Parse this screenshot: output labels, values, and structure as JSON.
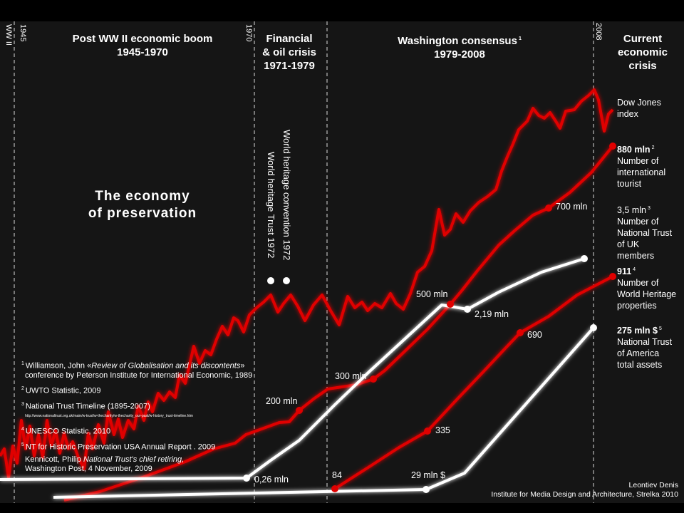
{
  "title": "The economy of preservation",
  "title_lines": [
    "The economy",
    "of preservation"
  ],
  "eras": [
    {
      "lines": [
        "Post WW II economic boom",
        "1945-1970"
      ]
    },
    {
      "lines": [
        "Financial",
        "& oil crisis",
        "1971-1979"
      ]
    },
    {
      "lines": [
        "Washington consensus",
        "1979-2008"
      ],
      "sup": "1"
    },
    {
      "lines": [
        "Current",
        "economic",
        "crisis"
      ]
    }
  ],
  "year_markers": [
    "WW II",
    "1945",
    "1970",
    "2008"
  ],
  "events": [
    "World heritage convention 1972",
    "World heritage Trust 1972"
  ],
  "colors": {
    "red": "#e00000",
    "white": "#ffffff",
    "background": "#151515"
  },
  "chart_data": {
    "type": "line",
    "title": "The economy of preservation",
    "x_range": [
      1940,
      2010
    ],
    "series": [
      {
        "name": "Dow Jones index",
        "color": "#e00000",
        "style": "jagged"
      },
      {
        "name": "Number of international tourist",
        "color": "#e00000",
        "points": [
          {
            "label": "200 mln"
          },
          {
            "label": "300 mln"
          },
          {
            "label": "500 mln"
          },
          {
            "label": "700 mln"
          },
          {
            "label": "880 mln",
            "sup": "2"
          }
        ]
      },
      {
        "name": "Number of National Trust of UK members",
        "color": "#ffffff",
        "points": [
          {
            "label": "0,26 mln"
          },
          {
            "label": "2,19 mln"
          },
          {
            "label": "3,5 mln",
            "sup": "3"
          }
        ]
      },
      {
        "name": "Number of World Heritage properties",
        "color": "#e00000",
        "points": [
          {
            "label": "84"
          },
          {
            "label": "335"
          },
          {
            "label": "690"
          },
          {
            "label": "911",
            "sup": "4"
          }
        ]
      },
      {
        "name": "National Trust of America total assets",
        "color": "#ffffff",
        "points": [
          {
            "label": "29 mln $"
          },
          {
            "label": "275 mln $",
            "sup": "5"
          }
        ]
      }
    ]
  },
  "legend": {
    "dow": [
      "Dow Jones",
      "index"
    ],
    "tourist": {
      "value": "880 mln",
      "sup": "2",
      "lines": [
        "Number of",
        "international",
        "tourist"
      ]
    },
    "trust_uk": {
      "value": "3,5 mln",
      "sup": "3",
      "lines": [
        "Number of",
        "National Trust",
        "of UK",
        "members"
      ]
    },
    "whp": {
      "value": "911",
      "sup": "4",
      "lines": [
        "Number of",
        "World Heritage",
        "properties"
      ]
    },
    "trust_us": {
      "value": "275 mln $",
      "sup": "5",
      "lines": [
        "National Trust",
        "of America",
        "total assets"
      ]
    }
  },
  "footnotes": {
    "f1_num": "1",
    "f1_a": "Williamson, John «",
    "f1_b": "Review of Globalisation and its discontents",
    "f1_c": "»",
    "f1_line2": "conference by Peterson Institute for International Economic, 1989",
    "f2_num": "2",
    "f2": "UWTO Statistic, 2009",
    "f3_num": "3",
    "f3": "National Trust Timeline (1895-2007)",
    "f3_url": "http://www.nationaltrust.org.uk/main/w-trust/w-thecharity/w-thecharity_our-past/w-history_trust-timeline.htm",
    "f4_num": "4",
    "f4": "UNESCO Statistic, 2010",
    "f5_num": "5",
    "f5": "NT for Historic Preservation USA Annual Report . 2009",
    "f6_a": "Kennicott, Philip ",
    "f6_b": "National Trust's chief retiring,",
    "f6_line2": "Washington Post, 4 November, 2009"
  },
  "credit": [
    "Leontiev Denis",
    "Institute for Media Design and Architecture, Strelka 2010"
  ]
}
